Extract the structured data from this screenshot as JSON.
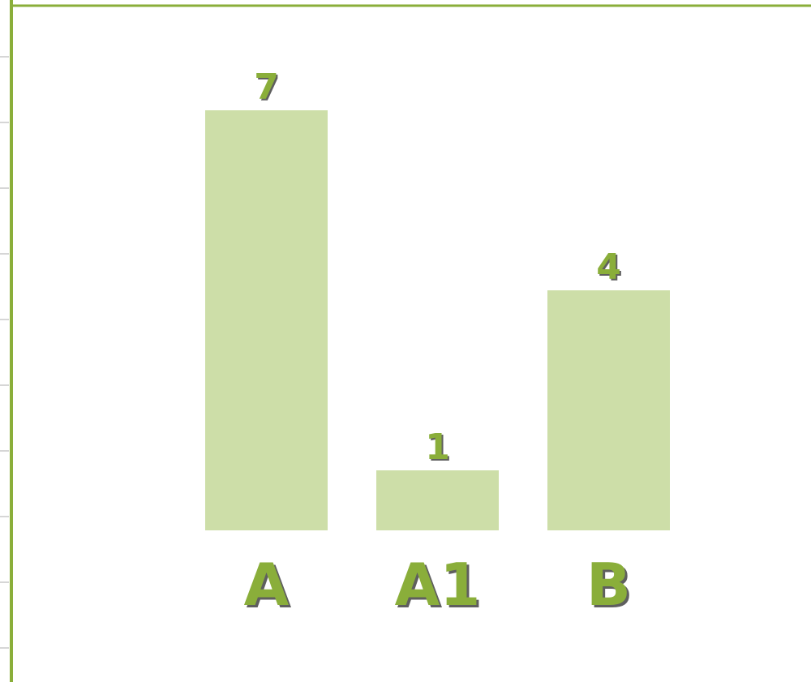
{
  "chart_data": {
    "type": "bar",
    "categories": [
      "A",
      "A1",
      "B"
    ],
    "values": [
      7,
      1,
      4
    ],
    "data_labels": [
      "7",
      "1",
      "4"
    ],
    "title": "",
    "xlabel": "",
    "ylabel": "",
    "ylim": [
      0,
      7
    ],
    "grid": false,
    "legend": "none",
    "colors": {
      "bar": "#cddea8",
      "label": "#8aae3a",
      "label_shadow": "#5f5f5f",
      "frame": "#8aae3a",
      "tick": "#d6d6d6"
    }
  }
}
